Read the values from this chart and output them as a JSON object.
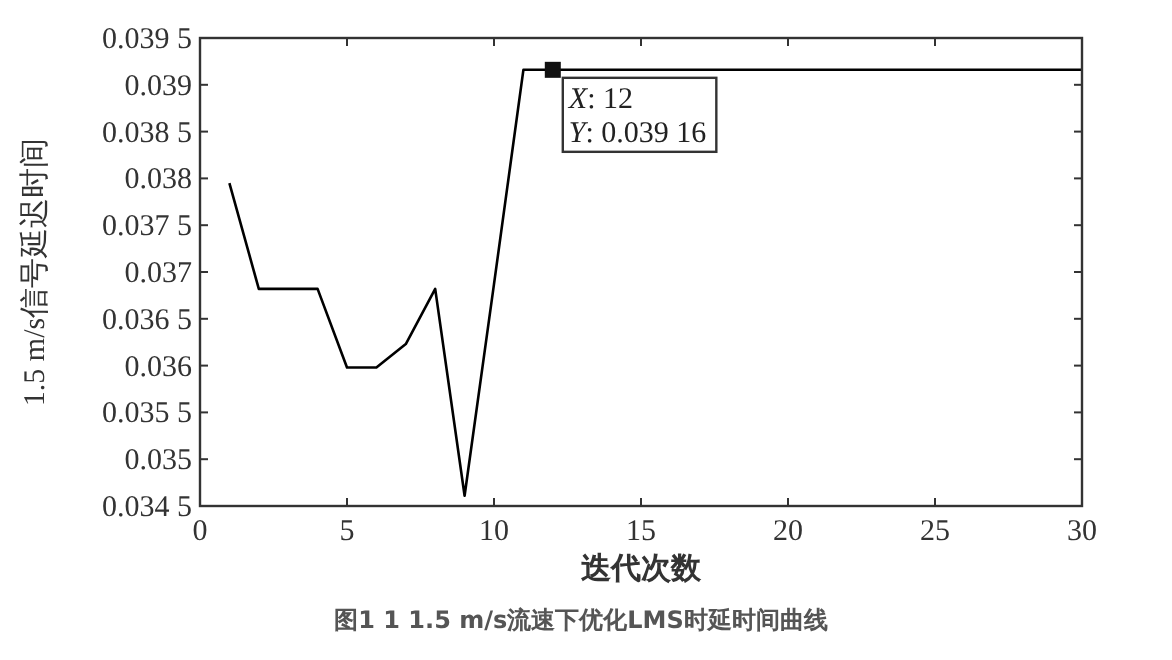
{
  "chart_data": {
    "type": "line",
    "title": "图1 1 1.5 m/s流速下优化LMS时延时间曲线",
    "xlabel": "迭代次数",
    "ylabel": "1.5 m/s信号延迟时间",
    "x": [
      1,
      2,
      3,
      4,
      5,
      6,
      7,
      8,
      9,
      10,
      11,
      12,
      13,
      14,
      15,
      16,
      17,
      18,
      19,
      20,
      21,
      22,
      23,
      24,
      25,
      26,
      27,
      28,
      29,
      30
    ],
    "series": [
      {
        "color": "#000000",
        "values": [
          0.03795,
          0.03682,
          0.03682,
          0.03682,
          0.03598,
          0.03598,
          0.03623,
          0.03682,
          0.03461,
          0.03687,
          0.03916,
          0.03916,
          0.03916,
          0.03916,
          0.03916,
          0.03916,
          0.03916,
          0.03916,
          0.03916,
          0.03916,
          0.03916,
          0.03916,
          0.03916,
          0.03916,
          0.03916,
          0.03916,
          0.03916,
          0.03916,
          0.03916,
          0.03916
        ]
      }
    ],
    "xlim": [
      0,
      30
    ],
    "xticks": [
      0,
      5,
      10,
      15,
      20,
      25,
      30
    ],
    "ylim": [
      0.0345,
      0.0395
    ],
    "yticks": [
      {
        "value": 0.0345,
        "label": "0.034 5"
      },
      {
        "value": 0.035,
        "label": "0.035"
      },
      {
        "value": 0.0355,
        "label": "0.035 5"
      },
      {
        "value": 0.036,
        "label": "0.036"
      },
      {
        "value": 0.0365,
        "label": "0.036 5"
      },
      {
        "value": 0.037,
        "label": "0.037"
      },
      {
        "value": 0.0375,
        "label": "0.037 5"
      },
      {
        "value": 0.038,
        "label": "0.038"
      },
      {
        "value": 0.0385,
        "label": "0.038 5"
      },
      {
        "value": 0.039,
        "label": "0.039"
      },
      {
        "value": 0.0395,
        "label": "0.039 5"
      }
    ],
    "annotations": [
      {
        "text": "X: 12\nY: 0.039 16",
        "x": 12,
        "y": 0.03916
      }
    ],
    "grid": false,
    "marker": "none",
    "line_style": "solid"
  }
}
